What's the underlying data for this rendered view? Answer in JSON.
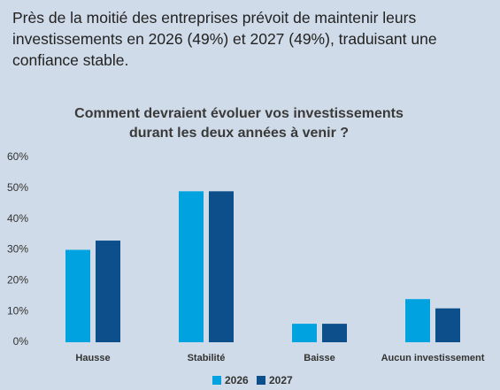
{
  "chart_data": {
    "type": "bar",
    "subtitle": "Près de la moitié des entreprises prévoit de maintenir leurs investissements en 2026 (49%) et 2027 (49%), traduisant une confiance stable.",
    "title": "Comment devraient évoluer vos investissements durant les deux années à venir ?",
    "categories": [
      "Hausse",
      "Stabilité",
      "Baisse",
      "Aucun investissement"
    ],
    "series": [
      {
        "name": "2026",
        "color": "#00a3e0",
        "values": [
          30,
          49,
          6,
          14
        ]
      },
      {
        "name": "2027",
        "color": "#0d4f8b",
        "values": [
          33,
          49,
          6,
          11
        ]
      }
    ],
    "ylim": [
      0,
      60
    ],
    "yticks": [
      {
        "value": 0,
        "label": "0%"
      },
      {
        "value": 10,
        "label": "10%"
      },
      {
        "value": 20,
        "label": "20%"
      },
      {
        "value": 30,
        "label": "30%"
      },
      {
        "value": 40,
        "label": "40%"
      },
      {
        "value": 50,
        "label": "50%"
      },
      {
        "value": 60,
        "label": "60%"
      }
    ],
    "legend": "bottom"
  }
}
